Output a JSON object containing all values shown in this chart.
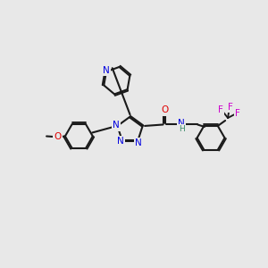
{
  "background_color": "#e8e8e8",
  "bond_color": "#1a1a1a",
  "bond_width": 1.5,
  "colors": {
    "N": "#0000e0",
    "O": "#e00000",
    "F": "#cc00cc",
    "H": "#3a8a6a",
    "C": "#1a1a1a"
  }
}
